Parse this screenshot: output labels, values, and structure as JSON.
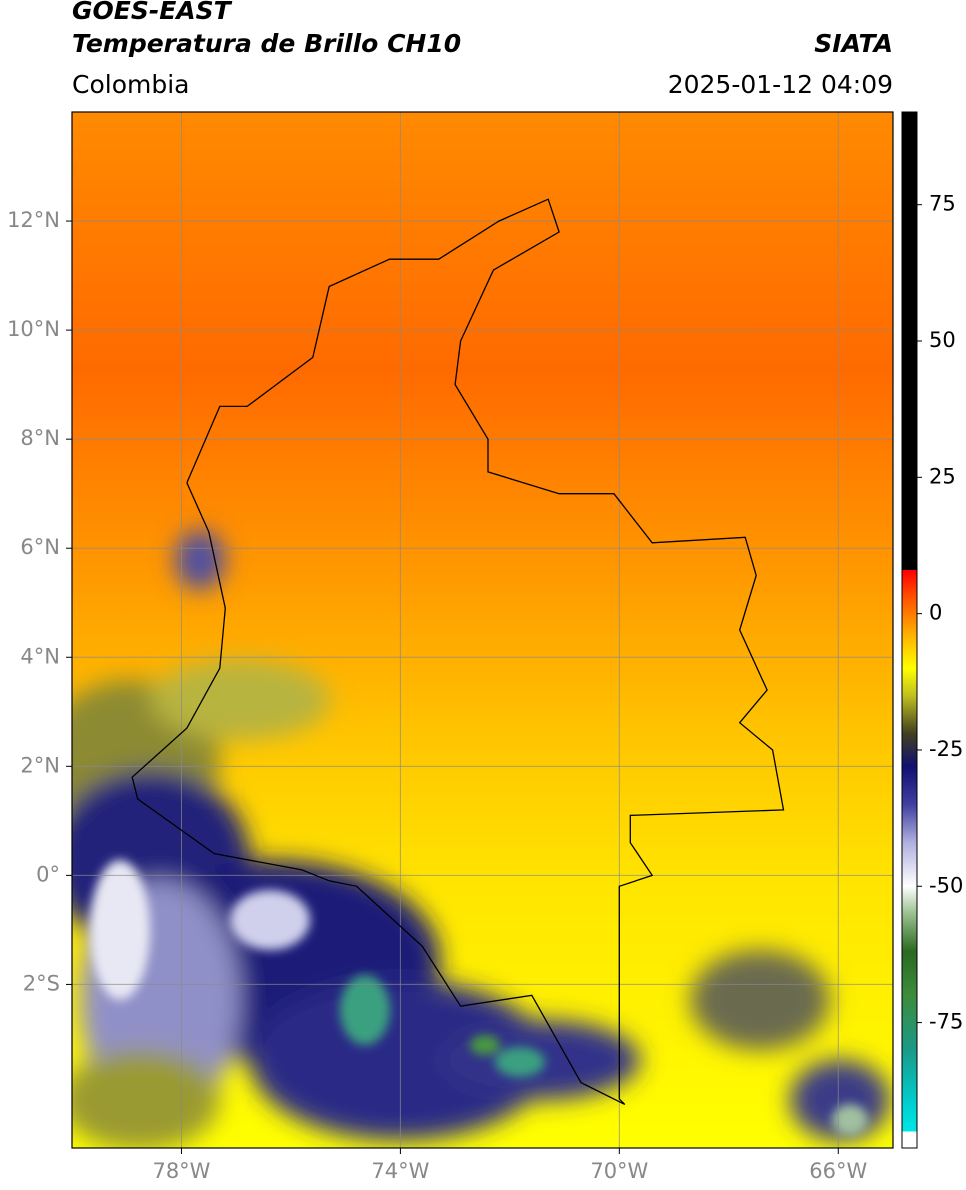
{
  "header": {
    "title": "GOES-EAST",
    "subtitle": "Temperatura de Brillo CH10",
    "source": "SIATA",
    "region": "Colombia",
    "timestamp": "2025-01-12 04:09"
  },
  "map": {
    "xlim": [
      -80,
      -65
    ],
    "ylim": [
      -5,
      14
    ],
    "xticks": [
      {
        "value": -78,
        "label": "78°W"
      },
      {
        "value": -74,
        "label": "74°W"
      },
      {
        "value": -70,
        "label": "70°W"
      },
      {
        "value": -66,
        "label": "66°W"
      }
    ],
    "yticks": [
      {
        "value": 12,
        "label": "12°N"
      },
      {
        "value": 10,
        "label": "10°N"
      },
      {
        "value": 8,
        "label": "8°N"
      },
      {
        "value": 6,
        "label": "6°N"
      },
      {
        "value": 4,
        "label": "4°N"
      },
      {
        "value": 2,
        "label": "2°N"
      },
      {
        "value": 0,
        "label": "0°"
      },
      {
        "value": -2,
        "label": "2°S"
      }
    ],
    "grid": true
  },
  "colorbar": {
    "lim": [
      -98,
      92
    ],
    "ticks": [
      75,
      50,
      25,
      0,
      -25,
      -50,
      -75
    ],
    "stops": [
      {
        "value": -98,
        "color": "#ffffff"
      },
      {
        "value": -95,
        "color": "#ffffff"
      },
      {
        "value": -95,
        "color": "#00e5e5"
      },
      {
        "value": -90,
        "color": "#00d0d0"
      },
      {
        "value": -80,
        "color": "#1a9a88"
      },
      {
        "value": -70,
        "color": "#3c8c3c"
      },
      {
        "value": -62,
        "color": "#2a6a20"
      },
      {
        "value": -55,
        "color": "#9ac090"
      },
      {
        "value": -50,
        "color": "#ffffff"
      },
      {
        "value": -42,
        "color": "#b0b0e0"
      },
      {
        "value": -35,
        "color": "#4040a0"
      },
      {
        "value": -28,
        "color": "#101070"
      },
      {
        "value": -22,
        "color": "#404020"
      },
      {
        "value": -15,
        "color": "#c0c020"
      },
      {
        "value": -10,
        "color": "#ffff00"
      },
      {
        "value": -3,
        "color": "#ffa500"
      },
      {
        "value": 3,
        "color": "#ff5000"
      },
      {
        "value": 8,
        "color": "#ff0000"
      },
      {
        "value": 8,
        "color": "#000000"
      },
      {
        "value": 92,
        "color": "#000000"
      }
    ]
  }
}
